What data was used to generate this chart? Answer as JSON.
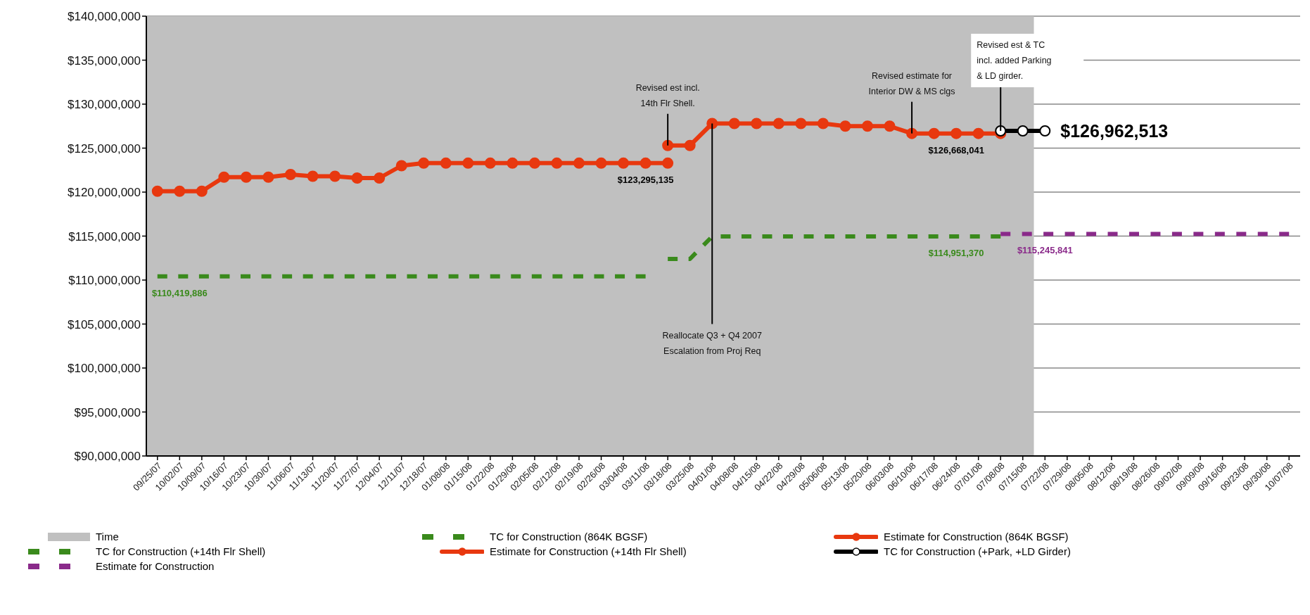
{
  "chart_data": {
    "type": "line",
    "categories": [
      "09/25/07",
      "10/02/07",
      "10/09/07",
      "10/16/07",
      "10/23/07",
      "10/30/07",
      "11/06/07",
      "11/13/07",
      "11/20/07",
      "11/27/07",
      "12/04/07",
      "12/11/07",
      "12/18/07",
      "01/08/08",
      "01/15/08",
      "01/22/08",
      "01/29/08",
      "02/05/08",
      "02/12/08",
      "02/19/08",
      "02/26/08",
      "03/04/08",
      "03/11/08",
      "03/18/08",
      "03/25/08",
      "04/01/08",
      "04/08/08",
      "04/15/08",
      "04/22/08",
      "04/29/08",
      "05/06/08",
      "05/13/08",
      "05/20/08",
      "06/03/08",
      "06/10/08",
      "06/17/08",
      "06/24/08",
      "07/01/08",
      "07/08/08",
      "07/15/08",
      "07/22/08",
      "07/29/08",
      "08/05/08",
      "08/12/08",
      "08/19/08",
      "08/26/08",
      "09/02/08",
      "09/09/08",
      "09/16/08",
      "09/23/08",
      "09/30/08",
      "10/07/08"
    ],
    "series": [
      {
        "name": "TC for Construction (864K BGSF)",
        "color": "#3a8a1c",
        "line_style": "dashed",
        "marker": "none",
        "values": [
          110419886,
          110419886,
          110419886,
          110419886,
          110419886,
          110419886,
          110419886,
          110419886,
          110419886,
          110419886,
          110419886,
          110419886,
          110419886,
          110419886,
          110419886,
          110419886,
          110419886,
          110419886,
          110419886,
          110419886,
          110419886,
          110419886,
          110419886,
          null,
          null,
          null,
          null,
          null,
          null,
          null,
          null,
          null,
          null,
          null,
          null,
          null,
          null,
          null,
          null,
          null,
          null,
          null,
          null,
          null,
          null,
          null,
          null,
          null,
          null,
          null,
          null,
          null
        ],
        "value_labels": [
          null,
          "$110,419,886",
          null,
          null,
          null,
          null,
          null,
          null,
          null,
          null,
          null,
          null,
          null,
          null,
          null,
          null,
          null,
          null,
          null,
          null,
          null,
          null,
          null,
          null,
          null,
          null,
          null,
          null,
          null,
          null,
          null,
          null,
          null,
          null,
          null,
          null,
          null,
          null,
          null,
          null,
          null,
          null,
          null,
          null,
          null,
          null,
          null,
          null,
          null,
          null,
          null,
          null
        ]
      },
      {
        "name": "Estimate for Construction (864K BGSF)",
        "color": "#e8380f",
        "line_style": "solid",
        "marker": "circle",
        "values": [
          120100000,
          120100000,
          120100000,
          121700000,
          121700000,
          121700000,
          122000000,
          121800000,
          121800000,
          121600000,
          121600000,
          123000000,
          123295135,
          123295135,
          123295135,
          123295135,
          123295135,
          123295135,
          123295135,
          123295135,
          123295135,
          123295135,
          123295135,
          123295135,
          null,
          null,
          null,
          null,
          null,
          null,
          null,
          null,
          null,
          null,
          null,
          null,
          null,
          null,
          null,
          null,
          null,
          null,
          null,
          null,
          null,
          null,
          null,
          null,
          null,
          null,
          null,
          null
        ],
        "value_labels": [
          null,
          null,
          null,
          null,
          null,
          null,
          null,
          null,
          null,
          null,
          null,
          null,
          null,
          null,
          null,
          null,
          null,
          null,
          null,
          null,
          null,
          null,
          "$123,295,135",
          null,
          null,
          null,
          null,
          null,
          null,
          null,
          null,
          null,
          null,
          null,
          null,
          null,
          null,
          null,
          null,
          null,
          null,
          null,
          null,
          null,
          null,
          null,
          null,
          null,
          null,
          null,
          null,
          null
        ]
      },
      {
        "name": "TC for Construction (+14th Flr Shell)",
        "color": "#3a8a1c",
        "line_style": "dashed",
        "marker": "none",
        "values": [
          null,
          null,
          null,
          null,
          null,
          null,
          null,
          null,
          null,
          null,
          null,
          null,
          null,
          null,
          null,
          null,
          null,
          null,
          null,
          null,
          null,
          null,
          null,
          112400000,
          112400000,
          114951370,
          114951370,
          114951370,
          114951370,
          114951370,
          114951370,
          114951370,
          114951370,
          114951370,
          114951370,
          114951370,
          114951370,
          114951370,
          114951370,
          null,
          null,
          null,
          null,
          null,
          null,
          null,
          null,
          null,
          null,
          null,
          null,
          null
        ],
        "value_labels": [
          null,
          null,
          null,
          null,
          null,
          null,
          null,
          null,
          null,
          null,
          null,
          null,
          null,
          null,
          null,
          null,
          null,
          null,
          null,
          null,
          null,
          null,
          null,
          null,
          null,
          null,
          null,
          null,
          null,
          null,
          null,
          null,
          null,
          null,
          null,
          null,
          "$114,951,370",
          null,
          null,
          null,
          null,
          null,
          null,
          null,
          null,
          null,
          null,
          null,
          null,
          null,
          null,
          null
        ]
      },
      {
        "name": "Estimate for Construction (+14th Flr Shell)",
        "color": "#e8380f",
        "line_style": "solid",
        "marker": "circle",
        "values": [
          null,
          null,
          null,
          null,
          null,
          null,
          null,
          null,
          null,
          null,
          null,
          null,
          null,
          null,
          null,
          null,
          null,
          null,
          null,
          null,
          null,
          null,
          null,
          125300000,
          125300000,
          127800000,
          127800000,
          127800000,
          127800000,
          127800000,
          127800000,
          127500000,
          127500000,
          127500000,
          126668041,
          126668041,
          126668041,
          126668041,
          126668041,
          null,
          null,
          null,
          null,
          null,
          null,
          null,
          null,
          null,
          null,
          null,
          null,
          null
        ],
        "value_labels": [
          null,
          null,
          null,
          null,
          null,
          null,
          null,
          null,
          null,
          null,
          null,
          null,
          null,
          null,
          null,
          null,
          null,
          null,
          null,
          null,
          null,
          null,
          null,
          null,
          null,
          null,
          null,
          null,
          null,
          null,
          null,
          null,
          null,
          null,
          null,
          null,
          "$126,668,041",
          null,
          null,
          null,
          null,
          null,
          null,
          null,
          null,
          null,
          null,
          null,
          null,
          null,
          null,
          null
        ]
      },
      {
        "name": "TC for Construction (+Park, +LD Girder)",
        "color": "#000000",
        "line_style": "solid",
        "marker": "circle",
        "values": [
          null,
          null,
          null,
          null,
          null,
          null,
          null,
          null,
          null,
          null,
          null,
          null,
          null,
          null,
          null,
          null,
          null,
          null,
          null,
          null,
          null,
          null,
          null,
          null,
          null,
          null,
          null,
          null,
          null,
          null,
          null,
          null,
          null,
          null,
          null,
          null,
          null,
          null,
          126962513,
          126962513,
          126962513,
          null,
          null,
          null,
          null,
          null,
          null,
          null,
          null,
          null,
          null,
          null
        ],
        "value_labels": [
          null,
          null,
          null,
          null,
          null,
          null,
          null,
          null,
          null,
          null,
          null,
          null,
          null,
          null,
          null,
          null,
          null,
          null,
          null,
          null,
          null,
          null,
          null,
          null,
          null,
          null,
          null,
          null,
          null,
          null,
          null,
          null,
          null,
          null,
          null,
          null,
          null,
          null,
          null,
          null,
          "$126,962,513",
          null,
          null,
          null,
          null,
          null,
          null,
          null,
          null,
          null,
          null,
          null
        ]
      },
      {
        "name": "Estimate for Construction",
        "color": "#8a2a8a",
        "line_style": "dashed",
        "marker": "none",
        "values": [
          null,
          null,
          null,
          null,
          null,
          null,
          null,
          null,
          null,
          null,
          null,
          null,
          null,
          null,
          null,
          null,
          null,
          null,
          null,
          null,
          null,
          null,
          null,
          null,
          null,
          null,
          null,
          null,
          null,
          null,
          null,
          null,
          null,
          null,
          null,
          null,
          null,
          null,
          115245841,
          115245841,
          115245841,
          115245841,
          115245841,
          115245841,
          115245841,
          115245841,
          115245841,
          115245841,
          115245841,
          115245841,
          115245841,
          115245841
        ],
        "value_labels": [
          null,
          null,
          null,
          null,
          null,
          null,
          null,
          null,
          null,
          null,
          null,
          null,
          null,
          null,
          null,
          null,
          null,
          null,
          null,
          null,
          null,
          null,
          null,
          null,
          null,
          null,
          null,
          null,
          null,
          null,
          null,
          null,
          null,
          null,
          null,
          null,
          null,
          null,
          null,
          null,
          "$115,245,841",
          null,
          null,
          null,
          null,
          null,
          null,
          null,
          null,
          null,
          null,
          null
        ]
      }
    ],
    "ylim": [
      90000000,
      140000000
    ],
    "yticks": [
      {
        "value": 90000000,
        "label": "$90,000,000"
      },
      {
        "value": 95000000,
        "label": "$95,000,000"
      },
      {
        "value": 100000000,
        "label": "$100,000,000"
      },
      {
        "value": 105000000,
        "label": "$105,000,000"
      },
      {
        "value": 110000000,
        "label": "$110,000,000"
      },
      {
        "value": 115000000,
        "label": "$115,000,000"
      },
      {
        "value": 120000000,
        "label": "$120,000,000"
      },
      {
        "value": 125000000,
        "label": "$125,000,000"
      },
      {
        "value": 130000000,
        "label": "$130,000,000"
      },
      {
        "value": 135000000,
        "label": "$135,000,000"
      },
      {
        "value": 140000000,
        "label": "$140,000,000"
      }
    ],
    "bands": [
      {
        "axis": "x",
        "from": "09/25/07",
        "to": "07/15/08",
        "label": "Time",
        "color": "#c0c0c0"
      }
    ],
    "grid": "y",
    "legend": "bottom",
    "annotations": [
      {
        "text": "Revised est incl.\n14th Flr Shell.",
        "x": "03/18/08",
        "y": 125300000
      },
      {
        "text": "Reallocate Q3 + Q4 2007\nEscalation from Proj Req",
        "x": "04/01/08",
        "y": 127800000
      },
      {
        "text": "Revised estimate for\nInterior DW & MS clgs",
        "x": "06/10/08",
        "y": 126668041
      },
      {
        "text": "Revised est & TC\nincl. added Parking\n& LD girder.",
        "x": "07/08/08",
        "y": 126962513
      }
    ]
  }
}
